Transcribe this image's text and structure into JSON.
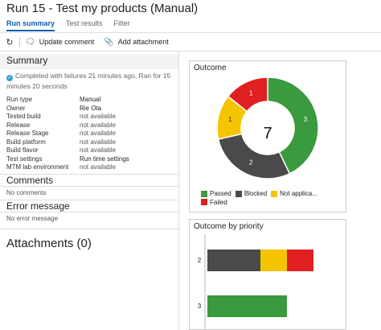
{
  "header": {
    "title": "Run 15 - Test my products (Manual)"
  },
  "tabs": [
    {
      "label": "Run summary",
      "active": true
    },
    {
      "label": "Test results",
      "active": false
    },
    {
      "label": "Filter",
      "active": false
    }
  ],
  "toolbar": {
    "refresh_icon": "refresh-icon",
    "update_comment": "Update comment",
    "add_attachment": "Add attachment"
  },
  "summary": {
    "heading": "Summary",
    "status_line1": "Completed with failures 21 minutes ago, Ran for 15",
    "status_line2": "minutes 20 seconds",
    "properties": [
      {
        "key": "Run type",
        "value": "Manual",
        "strong": true
      },
      {
        "key": "Owner",
        "value": "Rie Ota",
        "strong": true
      },
      {
        "key": "Tested build",
        "value": "not available",
        "strong": false
      },
      {
        "key": "Release",
        "value": "not available",
        "strong": false
      },
      {
        "key": "Release Stage",
        "value": "not available",
        "strong": false
      },
      {
        "key": "Build platform",
        "value": "not available",
        "strong": false
      },
      {
        "key": "Build flavor",
        "value": "not available",
        "strong": false
      },
      {
        "key": "Test settings",
        "value": "Run time settings",
        "strong": true
      },
      {
        "key": "MTM lab environment",
        "value": "not available",
        "strong": false
      }
    ]
  },
  "comments": {
    "heading": "Comments",
    "text": "No comments"
  },
  "error": {
    "heading": "Error message",
    "text": "No error message"
  },
  "attachments": {
    "heading": "Attachments (0)"
  },
  "colors": {
    "passed": "#3a9a3e",
    "blocked": "#4a4a4a",
    "not_applicable": "#f5c400",
    "failed": "#e02020"
  },
  "outcome": {
    "title": "Outcome",
    "total": "7",
    "chart_data": {
      "type": "pie",
      "slices": [
        {
          "name": "Passed",
          "value": 3,
          "label": "3"
        },
        {
          "name": "Blocked",
          "value": 2,
          "label": "2"
        },
        {
          "name": "Not applica...",
          "value": 1,
          "label": "1"
        },
        {
          "name": "Failed",
          "value": 1,
          "label": "1"
        }
      ]
    }
  },
  "legend": [
    {
      "name": "Passed",
      "color_key": "passed"
    },
    {
      "name": "Blocked",
      "color_key": "blocked"
    },
    {
      "name": "Not applica...",
      "color_key": "not_applicable"
    },
    {
      "name": "Failed",
      "color_key": "failed"
    }
  ],
  "priority": {
    "title": "Outcome by priority",
    "chart_data": {
      "type": "bar",
      "orientation": "horizontal",
      "stacked": true,
      "categories": [
        "2",
        "3"
      ],
      "series": [
        {
          "name": "Blocked",
          "values": [
            2,
            0
          ]
        },
        {
          "name": "Not applica...",
          "values": [
            1,
            0
          ]
        },
        {
          "name": "Failed",
          "values": [
            1,
            0
          ]
        },
        {
          "name": "Passed",
          "values": [
            0,
            3
          ]
        }
      ]
    }
  }
}
